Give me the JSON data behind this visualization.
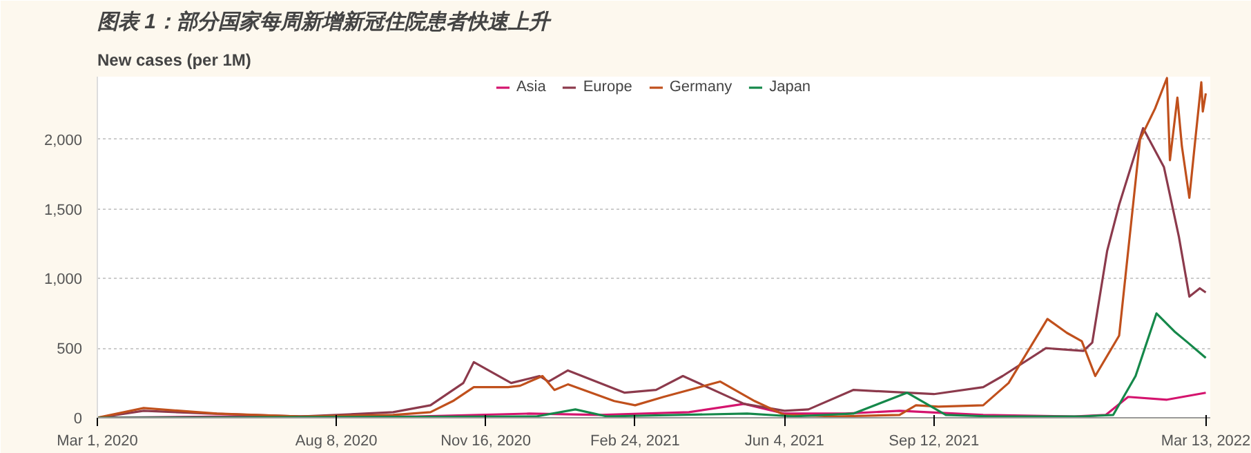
{
  "chart_data": {
    "type": "line",
    "title": "图表 1：部分国家每周新增新冠住院患者快速上升",
    "ylabel": "New cases (per 1M)",
    "xlim": [
      "2020-03-01",
      "2022-03-16"
    ],
    "ylim": [
      0,
      2450
    ],
    "xticks": [
      {
        "value": "2020-03-01",
        "label": "Mar 1, 2020"
      },
      {
        "value": "2020-08-08",
        "label": "Aug 8, 2020"
      },
      {
        "value": "2020-11-16",
        "label": "Nov 16, 2020"
      },
      {
        "value": "2021-02-24",
        "label": "Feb 24, 2021"
      },
      {
        "value": "2021-06-04",
        "label": "Jun 4, 2021"
      },
      {
        "value": "2021-09-12",
        "label": "Sep 12, 2021"
      },
      {
        "value": "2022-03-13",
        "label": "Mar 13, 2022"
      }
    ],
    "yticks": [
      0,
      500,
      {
        "value": 1000,
        "label": "1,000"
      },
      {
        "value": 1500,
        "label": "1,500"
      },
      {
        "value": 2000,
        "label": "2,000"
      }
    ],
    "grid": "y",
    "legend": "top",
    "marker": "none",
    "line_style": "solid",
    "series": [
      {
        "name": "Asia",
        "color": "#d4146e",
        "x": [
          "2020-03-01",
          "2020-06-01",
          "2020-10-01",
          "2020-12-15",
          "2021-02-01",
          "2021-04-01",
          "2021-05-08",
          "2021-06-04",
          "2021-07-15",
          "2021-08-20",
          "2021-10-15",
          "2021-12-15",
          "2022-01-05",
          "2022-01-20",
          "2022-02-15",
          "2022-03-13"
        ],
        "values": [
          0,
          10,
          10,
          30,
          20,
          40,
          100,
          30,
          30,
          50,
          20,
          10,
          20,
          150,
          130,
          180
        ]
      },
      {
        "name": "Europe",
        "color": "#8c3a4c",
        "x": [
          "2020-03-01",
          "2020-04-01",
          "2020-05-15",
          "2020-07-15",
          "2020-08-08",
          "2020-09-15",
          "2020-10-10",
          "2020-11-01",
          "2020-11-08",
          "2020-12-03",
          "2020-12-22",
          "2020-12-28",
          "2021-01-10",
          "2021-02-17",
          "2021-03-10",
          "2021-03-28",
          "2021-05-08",
          "2021-06-04",
          "2021-06-20",
          "2021-07-20",
          "2021-09-12",
          "2021-10-15",
          "2021-10-28",
          "2021-11-26",
          "2021-12-21",
          "2021-12-27",
          "2022-01-06",
          "2022-01-14",
          "2022-01-30",
          "2022-02-13",
          "2022-02-23",
          "2022-03-02",
          "2022-03-09",
          "2022-03-13"
        ],
        "values": [
          0,
          50,
          30,
          10,
          20,
          40,
          90,
          250,
          400,
          250,
          300,
          260,
          340,
          180,
          200,
          300,
          100,
          50,
          60,
          200,
          170,
          220,
          300,
          500,
          480,
          540,
          1200,
          1530,
          2080,
          1800,
          1300,
          870,
          930,
          900
        ]
      },
      {
        "name": "Germany",
        "color": "#c0501c",
        "x": [
          "2020-03-01",
          "2020-04-01",
          "2020-05-20",
          "2020-07-15",
          "2020-09-15",
          "2020-10-10",
          "2020-10-25",
          "2020-11-08",
          "2020-12-01",
          "2020-12-09",
          "2020-12-24",
          "2021-01-01",
          "2021-01-10",
          "2021-02-10",
          "2021-02-24",
          "2021-03-15",
          "2021-04-22",
          "2021-05-15",
          "2021-06-04",
          "2021-07-10",
          "2021-08-20",
          "2021-08-31",
          "2021-09-15",
          "2021-10-15",
          "2021-11-01",
          "2021-11-27",
          "2021-12-10",
          "2021-12-20",
          "2021-12-29",
          "2022-01-14",
          "2022-01-28",
          "2022-02-07",
          "2022-02-15",
          "2022-02-17",
          "2022-02-22",
          "2022-02-25",
          "2022-03-02",
          "2022-03-06",
          "2022-03-10",
          "2022-03-11",
          "2022-03-13"
        ],
        "values": [
          0,
          70,
          30,
          10,
          20,
          40,
          120,
          220,
          220,
          230,
          300,
          200,
          240,
          120,
          90,
          150,
          260,
          120,
          20,
          10,
          20,
          90,
          80,
          90,
          250,
          710,
          610,
          550,
          300,
          590,
          2000,
          2220,
          2440,
          1850,
          2300,
          1950,
          1580,
          2000,
          2410,
          2200,
          2330
        ]
      },
      {
        "name": "Japan",
        "color": "#15884a",
        "x": [
          "2020-03-01",
          "2020-12-20",
          "2021-01-15",
          "2021-02-05",
          "2021-05-10",
          "2021-06-10",
          "2021-07-20",
          "2021-08-25",
          "2021-09-20",
          "2021-10-20",
          "2021-12-20",
          "2022-01-10",
          "2022-01-25",
          "2022-02-08",
          "2022-02-20",
          "2022-03-01",
          "2022-03-13"
        ],
        "values": [
          0,
          10,
          60,
          10,
          30,
          10,
          30,
          180,
          20,
          10,
          10,
          20,
          300,
          750,
          620,
          540,
          430
        ]
      }
    ]
  }
}
